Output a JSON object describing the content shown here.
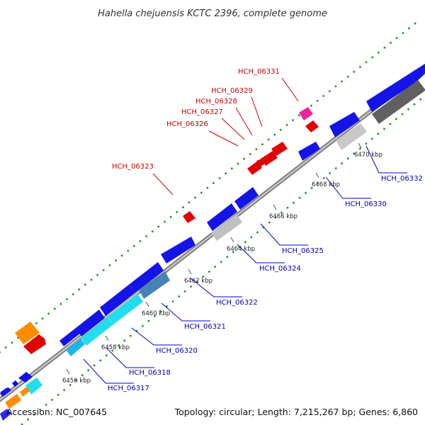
{
  "title": "Hahella chejuensis KCTC 2396, complete genome",
  "footer": {
    "accession": "Accession: NC_007645",
    "summary": "Topology: circular; Length: 7,215,267 bp; Genes: 6,860"
  },
  "colors": {
    "backbone": "#999999",
    "dotted_ring": "#228b22",
    "label_forward": "#cc0000",
    "label_reverse": "#0000aa",
    "tick_line": "#0000cc"
  },
  "ticks": [
    {
      "label": "6456 kbp"
    },
    {
      "label": "6458 kbp"
    },
    {
      "label": "6460 kbp"
    },
    {
      "label": "6462 kbp"
    },
    {
      "label": "6464 kbp"
    },
    {
      "label": "6466 kbp"
    },
    {
      "label": "6468 kbp"
    },
    {
      "label": "6470 kbp"
    }
  ],
  "gene_labels_forward": [
    {
      "label": "HCH_06323"
    },
    {
      "label": "HCH_06326"
    },
    {
      "label": "HCH_06327"
    },
    {
      "label": "HCH_06328"
    },
    {
      "label": "HCH_06329"
    },
    {
      "label": "HCH_06331"
    }
  ],
  "gene_labels_reverse": [
    {
      "label": "HCH_06317"
    },
    {
      "label": "HCH_06318"
    },
    {
      "label": "HCH_06320"
    },
    {
      "label": "HCH_06321"
    },
    {
      "label": "HCH_06322"
    },
    {
      "label": "HCH_06324"
    },
    {
      "label": "HCH_06325"
    },
    {
      "label": "HCH_06330"
    },
    {
      "label": "HCH_06332"
    }
  ]
}
